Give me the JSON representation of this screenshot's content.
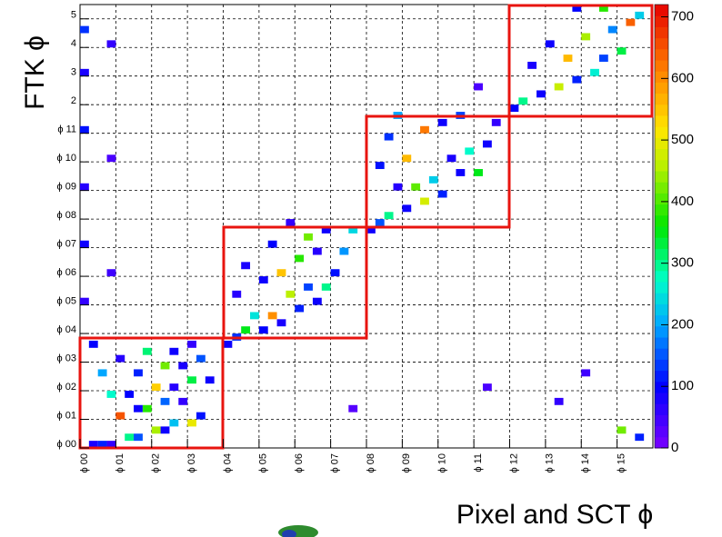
{
  "chart_data": {
    "type": "heatmap",
    "x_label": "Pixel and SCT ϕ",
    "y_label": "FTK ϕ",
    "xlim": [
      0,
      64
    ],
    "ylim": [
      0,
      62
    ],
    "zlim": [
      0,
      720
    ],
    "xticks": [
      {
        "value": 0,
        "label": "ϕ 00"
      },
      {
        "value": 4,
        "label": "ϕ 01"
      },
      {
        "value": 8,
        "label": "ϕ 02"
      },
      {
        "value": 12,
        "label": "ϕ 03"
      },
      {
        "value": 16,
        "label": "ϕ 04"
      },
      {
        "value": 20,
        "label": "ϕ 05"
      },
      {
        "value": 24,
        "label": "ϕ 06"
      },
      {
        "value": 28,
        "label": "ϕ 07"
      },
      {
        "value": 32,
        "label": "ϕ 08"
      },
      {
        "value": 36,
        "label": "ϕ 09"
      },
      {
        "value": 40,
        "label": "ϕ 10"
      },
      {
        "value": 44,
        "label": "ϕ 11"
      },
      {
        "value": 48,
        "label": "ϕ 12"
      },
      {
        "value": 52,
        "label": "ϕ 13"
      },
      {
        "value": 56,
        "label": "ϕ 14"
      },
      {
        "value": 60,
        "label": "ϕ 15"
      }
    ],
    "yticks": [
      {
        "value": 0,
        "label": "ϕ 00"
      },
      {
        "value": 4,
        "label": "ϕ 01"
      },
      {
        "value": 8,
        "label": "ϕ 02"
      },
      {
        "value": 12,
        "label": "ϕ 03"
      },
      {
        "value": 16,
        "label": "ϕ 04"
      },
      {
        "value": 20,
        "label": "ϕ 05"
      },
      {
        "value": 24,
        "label": "ϕ 06"
      },
      {
        "value": 28,
        "label": "ϕ 07"
      },
      {
        "value": 32,
        "label": "ϕ 08"
      },
      {
        "value": 36,
        "label": "ϕ 09"
      },
      {
        "value": 40,
        "label": "ϕ 10"
      },
      {
        "value": 44,
        "label": "ϕ 11"
      },
      {
        "value": 48,
        "label": "2"
      },
      {
        "value": 52,
        "label": "3"
      },
      {
        "value": 56,
        "label": "4"
      },
      {
        "value": 60,
        "label": "5"
      }
    ],
    "zticks": [
      0,
      100,
      200,
      300,
      400,
      500,
      600,
      700
    ],
    "grid": true,
    "x": [
      1,
      2,
      3,
      5,
      6,
      8,
      9,
      10,
      12,
      13,
      4,
      6,
      7,
      9,
      11,
      3,
      5,
      8,
      10,
      12,
      14,
      2,
      6,
      9,
      11,
      13,
      4,
      7,
      10,
      1,
      12,
      16,
      17,
      18,
      20,
      22,
      19,
      21,
      24,
      26,
      17,
      23,
      25,
      27,
      20,
      22,
      28,
      18,
      24,
      26,
      29,
      21,
      25,
      27,
      30,
      23,
      32,
      33,
      34,
      36,
      38,
      40,
      35,
      37,
      39,
      42,
      44,
      33,
      36,
      41,
      43,
      45,
      34,
      38,
      40,
      46,
      35,
      42,
      48,
      49,
      51,
      53,
      55,
      57,
      50,
      54,
      58,
      60,
      52,
      56,
      59,
      61,
      62,
      55,
      58,
      0,
      0,
      0,
      0,
      0,
      0,
      3,
      3,
      3,
      45,
      53,
      60,
      62,
      56,
      44,
      30
    ],
    "y": [
      0,
      0,
      0,
      1,
      1,
      2,
      2,
      3,
      3,
      4,
      4,
      5,
      5,
      6,
      6,
      7,
      7,
      8,
      8,
      9,
      9,
      10,
      10,
      11,
      11,
      12,
      12,
      13,
      13,
      14,
      14,
      14,
      15,
      16,
      16,
      17,
      18,
      18,
      19,
      20,
      21,
      21,
      22,
      22,
      23,
      24,
      24,
      25,
      26,
      27,
      27,
      28,
      29,
      30,
      30,
      31,
      30,
      31,
      32,
      33,
      34,
      35,
      36,
      36,
      37,
      38,
      38,
      39,
      40,
      40,
      41,
      42,
      43,
      44,
      45,
      45,
      46,
      46,
      47,
      48,
      49,
      50,
      51,
      52,
      53,
      54,
      54,
      55,
      56,
      57,
      58,
      59,
      60,
      61,
      61,
      20,
      28,
      36,
      44,
      52,
      58,
      24,
      40,
      56,
      8,
      6,
      2,
      1,
      10,
      50,
      5
    ],
    "values": [
      80,
      120,
      60,
      300,
      150,
      450,
      90,
      220,
      500,
      110,
      650,
      90,
      380,
      160,
      60,
      270,
      100,
      540,
      70,
      330,
      90,
      200,
      120,
      420,
      80,
      150,
      70,
      310,
      90,
      100,
      60,
      90,
      130,
      350,
      100,
      80,
      250,
      600,
      120,
      90,
      70,
      460,
      140,
      300,
      90,
      550,
      110,
      80,
      380,
      70,
      190,
      100,
      420,
      90,
      240,
      60,
      90,
      150,
      300,
      90,
      480,
      120,
      70,
      410,
      230,
      90,
      350,
      110,
      560,
      80,
      270,
      90,
      130,
      620,
      90,
      60,
      200,
      140,
      100,
      300,
      90,
      470,
      120,
      260,
      80,
      560,
      140,
      330,
      90,
      450,
      180,
      640,
      230,
      100,
      380,
      60,
      90,
      70,
      110,
      80,
      130,
      50,
      40,
      60,
      40,
      60,
      420,
      120,
      50,
      40,
      30
    ]
  }
}
